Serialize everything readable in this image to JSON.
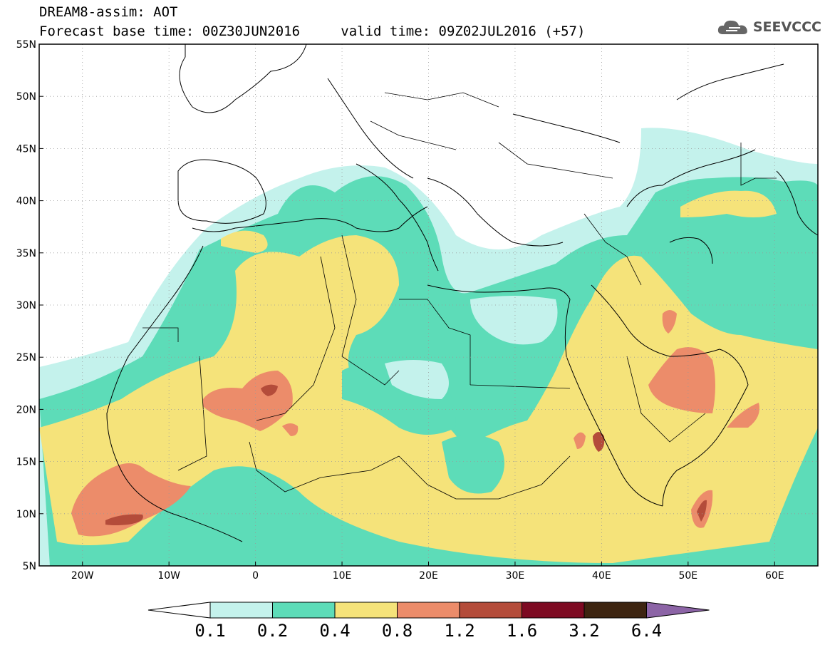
{
  "header": {
    "title_line1": "DREAM8-assim: AOT",
    "forecast_label": "Forecast base time: 00Z30JUN2016",
    "valid_label": "valid time: 09Z02JUL2016 (+57)"
  },
  "logo": {
    "text": "SEEVCCC",
    "icon": "cloud-icon"
  },
  "map": {
    "lat_labels": [
      "55N",
      "50N",
      "45N",
      "40N",
      "35N",
      "30N",
      "25N",
      "20N",
      "15N",
      "10N",
      "5N"
    ],
    "lon_labels": [
      "20W",
      "10W",
      "0",
      "10E",
      "20E",
      "30E",
      "40E",
      "50E",
      "60E"
    ],
    "lat_values": [
      55,
      50,
      45,
      40,
      35,
      30,
      25,
      20,
      15,
      10,
      5
    ],
    "lon_values": [
      -20,
      -10,
      0,
      10,
      20,
      30,
      40,
      50,
      60
    ]
  },
  "colorbar": {
    "labels": [
      "0.1",
      "0.2",
      "0.4",
      "0.8",
      "1.2",
      "1.6",
      "3.2",
      "6.4"
    ],
    "colors": [
      "#ffffff",
      "#c4f2ec",
      "#5ddcb8",
      "#f5e37a",
      "#ec8c6a",
      "#b44c3a",
      "#7d0a22",
      "#3d2410",
      "#8c64a6"
    ]
  },
  "field_colors": {
    "level_01": "#c4f2ec",
    "level_02": "#5ddcb8",
    "level_04": "#f5e37a",
    "level_08": "#ec8c6a",
    "level_12": "#b44c3a"
  }
}
